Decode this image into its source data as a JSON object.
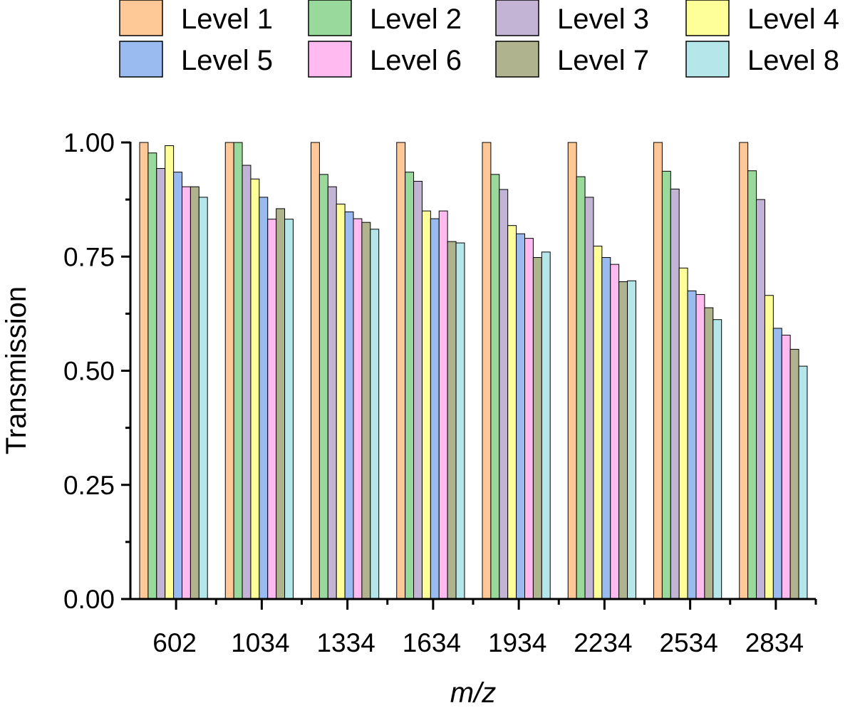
{
  "chart_data": {
    "type": "bar",
    "title": "",
    "xlabel": "m/z",
    "ylabel": "Transmission",
    "ylim": [
      0,
      1.0
    ],
    "yticks": [
      "0.00",
      "0.25",
      "0.50",
      "0.75",
      "1.00"
    ],
    "yticks_values": [
      0,
      0.25,
      0.5,
      0.75,
      1.0
    ],
    "categories": [
      "602",
      "1034",
      "1334",
      "1634",
      "1934",
      "2234",
      "2534",
      "2834"
    ],
    "grid": false,
    "legend": "top",
    "series": [
      {
        "name": "Level 1",
        "color": "#FFC896",
        "values": [
          1.0,
          1.0,
          1.0,
          1.0,
          1.0,
          1.0,
          1.0,
          1.0
        ]
      },
      {
        "name": "Level 2",
        "color": "#99D99C",
        "values": [
          0.977,
          1.0,
          0.93,
          0.935,
          0.93,
          0.925,
          0.937,
          0.938
        ]
      },
      {
        "name": "Level 3",
        "color": "#C3B4D6",
        "values": [
          0.943,
          0.95,
          0.903,
          0.915,
          0.897,
          0.88,
          0.898,
          0.875
        ]
      },
      {
        "name": "Level 4",
        "color": "#FFFF99",
        "values": [
          0.993,
          0.92,
          0.865,
          0.85,
          0.818,
          0.773,
          0.725,
          0.665
        ]
      },
      {
        "name": "Level 5",
        "color": "#99BBF0",
        "values": [
          0.935,
          0.88,
          0.848,
          0.833,
          0.8,
          0.748,
          0.675,
          0.593
        ]
      },
      {
        "name": "Level 6",
        "color": "#FFBBF0",
        "values": [
          0.903,
          0.832,
          0.833,
          0.85,
          0.79,
          0.733,
          0.667,
          0.578
        ]
      },
      {
        "name": "Level 7",
        "color": "#B0B48E",
        "values": [
          0.903,
          0.855,
          0.825,
          0.783,
          0.748,
          0.695,
          0.638,
          0.547
        ]
      },
      {
        "name": "Level 8",
        "color": "#B5E6EA",
        "values": [
          0.88,
          0.832,
          0.81,
          0.78,
          0.76,
          0.697,
          0.612,
          0.51
        ]
      }
    ]
  }
}
